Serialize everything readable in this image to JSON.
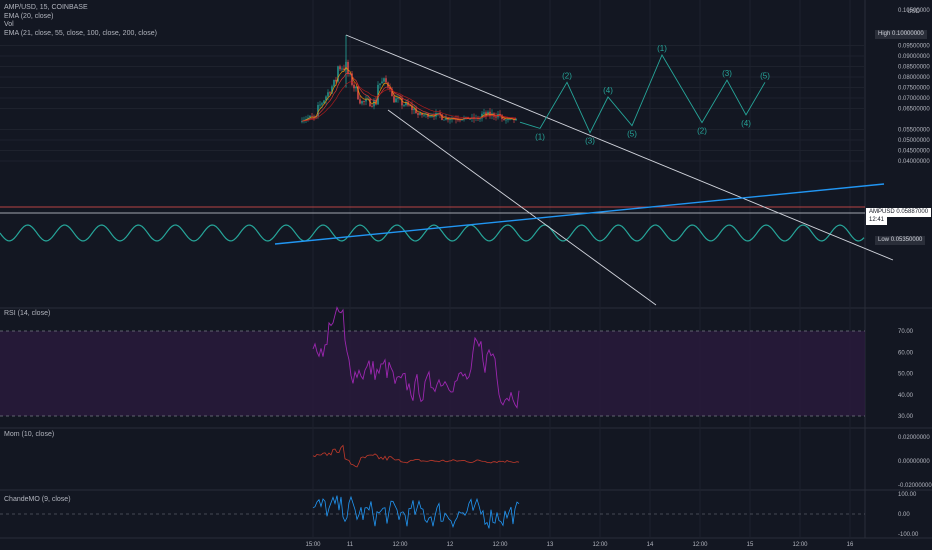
{
  "legend": {
    "symbol": "AMP/USD, 15, COINBASE",
    "vol": "Vol",
    "ema20": "EMA (20, close)",
    "ema_multi": "EMA (21, close, 55, close, 100, close, 200, close)"
  },
  "currency": "USD",
  "price_axis": {
    "top_label": "0.10500000",
    "ticks": [
      "0.09500000",
      "0.09000000",
      "0.08500000",
      "0.08000000",
      "0.07500000",
      "0.07000000",
      "0.06500000",
      "0.05500000",
      "0.05000000",
      "0.04500000",
      "0.04000000"
    ],
    "high_label": "High",
    "high_value": "0.10000000",
    "low_label": "Low",
    "low_value": "0.05350000",
    "last_symbol": "AMPUSD",
    "last_value": "0.05887000",
    "last_countdown": "12:41"
  },
  "time_axis": [
    "15:00",
    "11",
    "12:00",
    "12",
    "12:00",
    "13",
    "12:00",
    "14",
    "12:00",
    "15",
    "12:00",
    "16"
  ],
  "wave_labels": [
    "(1)",
    "(2)",
    "(3)",
    "(4)",
    "(5)",
    "(1)",
    "(2)",
    "(3)",
    "(4)",
    "(5)"
  ],
  "rsi": {
    "title": "RSI (14, close)",
    "ticks": [
      "70.00",
      "60.00",
      "50.00",
      "40.00",
      "30.00"
    ],
    "upper": 70,
    "lower": 30
  },
  "mom": {
    "title": "Mom (10, close)",
    "ticks": [
      "0.02000000",
      "0.00000000",
      "-0.02000000"
    ]
  },
  "cmo": {
    "title": "ChandeMO (9, close)",
    "ticks": [
      "100.00",
      "0.00",
      "-100.00"
    ]
  },
  "colors": {
    "background": "#131722",
    "rsi_line": "#9c27b0",
    "rsi_band": "#2a1a3d",
    "mom_line": "#c0392b",
    "cmo_line": "#2196f3",
    "wave": "#26a69a",
    "trend_blue": "#2196f3",
    "trend_white": "#d1d4dc"
  },
  "chart_data": {
    "type": "line",
    "instrument": "AMP/USD",
    "interval": "15",
    "exchange": "COINBASE",
    "high": 0.1,
    "low": 0.0535,
    "last": 0.05887,
    "ylim": [
      0.038,
      0.105
    ],
    "elliott_projection": [
      {
        "label": "(1)",
        "price": 0.0555
      },
      {
        "label": "(2)",
        "price": 0.0775
      },
      {
        "label": "(3)",
        "price": 0.0535
      },
      {
        "label": "(4)",
        "price": 0.0705
      },
      {
        "label": "(5)",
        "price": 0.0568
      },
      {
        "label": "(1)",
        "price": 0.0905
      },
      {
        "label": "(2)",
        "price": 0.0583
      },
      {
        "label": "(3)",
        "price": 0.0785
      },
      {
        "label": "(4)",
        "price": 0.062
      },
      {
        "label": "(5)",
        "price": 0.0775
      }
    ],
    "rsi_range": [
      30,
      70
    ],
    "grid": true
  }
}
